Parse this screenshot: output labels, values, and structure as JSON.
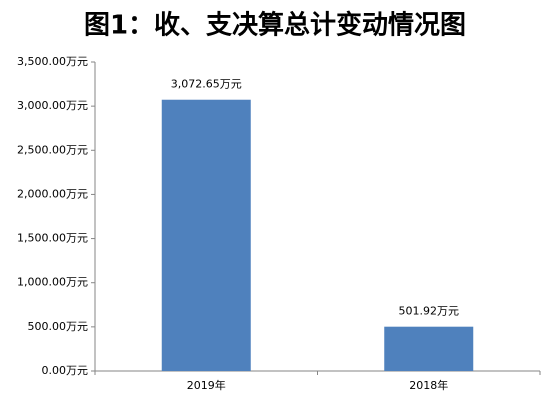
{
  "chart_data": {
    "type": "bar",
    "title": "图1：收、支决算总计变动情况图",
    "categories": [
      "2019年",
      "2018年"
    ],
    "values": [
      3072.65,
      501.92
    ],
    "value_labels": [
      "3,072.65万元",
      "501.92万元"
    ],
    "color": "#4f81bd",
    "ylim": [
      0,
      3500
    ],
    "yticks": [
      {
        "value": 0,
        "label": "0.00万元"
      },
      {
        "value": 500,
        "label": "500.00万元"
      },
      {
        "value": 1000,
        "label": "1,000.00万元"
      },
      {
        "value": 1500,
        "label": "1,500.00万元"
      },
      {
        "value": 2000,
        "label": "2,000.00万元"
      },
      {
        "value": 2500,
        "label": "2,500.00万元"
      },
      {
        "value": 3000,
        "label": "3,000.00万元"
      },
      {
        "value": 3500,
        "label": "3,500.00万元"
      }
    ],
    "grid": false
  }
}
